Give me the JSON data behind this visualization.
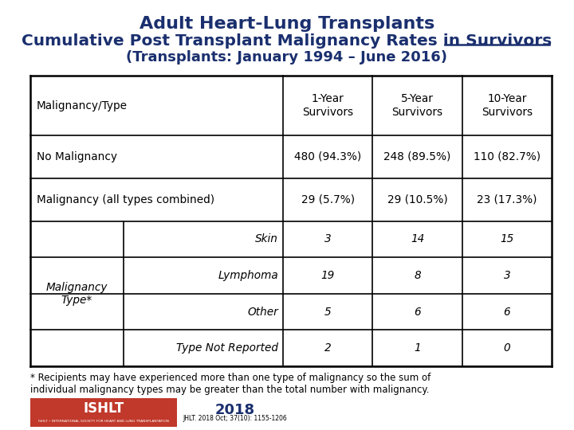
{
  "title_line1": "Adult Heart-Lung Transplants",
  "title_line2_pre": "Cumulative Post Transplant Malignancy Rates in ",
  "title_line2_ul": "Survivors",
  "title_line3": "(Transplants: January 1994 – June 2016)",
  "title_color": "#1a2f6e",
  "bg_color": "#ffffff",
  "footnote": "* Recipients may have experienced more than one type of malignancy so the sum of\nindividual malignancy types may be greater than the total number with malignancy.",
  "col_headers": [
    "1-Year\nSurvivors",
    "5-Year\nSurvivors",
    "10-Year\nSurvivors"
  ],
  "row0_label": "Malignancy/Type",
  "row1_label": "No Malignancy",
  "row1_vals": [
    "480 (94.3%)",
    "248 (89.5%)",
    "110 (82.7%)"
  ],
  "row2_label": "Malignancy (all types combined)",
  "row2_vals": [
    "29 (5.7%)",
    "29 (10.5%)",
    "23 (17.3%)"
  ],
  "mal_type_label": "Malignancy\nType*",
  "subtypes": [
    "Skin",
    "Lymphoma",
    "Other",
    "Type Not Reported"
  ],
  "subvals": [
    [
      "3",
      "14",
      "15"
    ],
    [
      "19",
      "8",
      "3"
    ],
    [
      "5",
      "6",
      "6"
    ],
    [
      "2",
      "1",
      "0"
    ]
  ],
  "footer_red": "#c0392b",
  "footer_year": "2018",
  "footer_cite": "JHLT. 2018 Oct; 37(10): 1155-1206",
  "footer_org": "ISHLT • INTERNATIONAL SOCIETY FOR HEART AND LUNG TRANSPLANTATION"
}
